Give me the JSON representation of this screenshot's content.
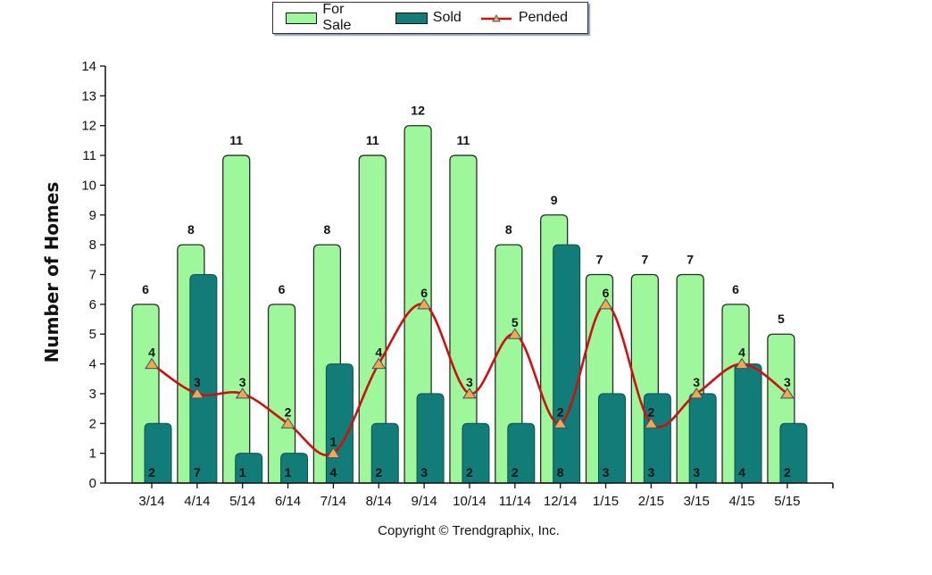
{
  "chart_data": {
    "type": "bar",
    "title": "",
    "xlabel": "",
    "ylabel": "Number of Homes",
    "ylim": [
      0,
      14
    ],
    "yticks": [
      0,
      1,
      2,
      3,
      4,
      5,
      6,
      7,
      8,
      9,
      10,
      11,
      12,
      13,
      14
    ],
    "grid": false,
    "legend_position": "top-center",
    "categories": [
      "3/14",
      "4/14",
      "5/14",
      "6/14",
      "7/14",
      "8/14",
      "9/14",
      "10/14",
      "11/14",
      "12/14",
      "1/15",
      "2/15",
      "3/15",
      "4/15",
      "5/15"
    ],
    "series": [
      {
        "name": "For Sale",
        "kind": "bar",
        "color": "#9ef79a",
        "values": [
          6,
          8,
          11,
          6,
          8,
          11,
          12,
          11,
          8,
          9,
          7,
          7,
          7,
          6,
          5
        ]
      },
      {
        "name": "Sold",
        "kind": "bar",
        "color": "#127c78",
        "values": [
          2,
          7,
          1,
          1,
          4,
          2,
          3,
          2,
          2,
          8,
          3,
          3,
          3,
          4,
          2
        ]
      },
      {
        "name": "Pended",
        "kind": "line",
        "color": "#cc1111",
        "marker_color": "#f2a94a",
        "values": [
          4,
          3,
          3,
          2,
          1,
          4,
          6,
          3,
          5,
          2,
          6,
          2,
          3,
          4,
          3
        ]
      }
    ]
  },
  "legend": {
    "items": [
      {
        "label": "For Sale",
        "color": "#9ef79a"
      },
      {
        "label": "Sold",
        "color": "#127c78"
      },
      {
        "label": "Pended",
        "color": "#cc1111"
      }
    ]
  },
  "footer": {
    "copyright": "Copyright © Trendgraphix, Inc."
  }
}
